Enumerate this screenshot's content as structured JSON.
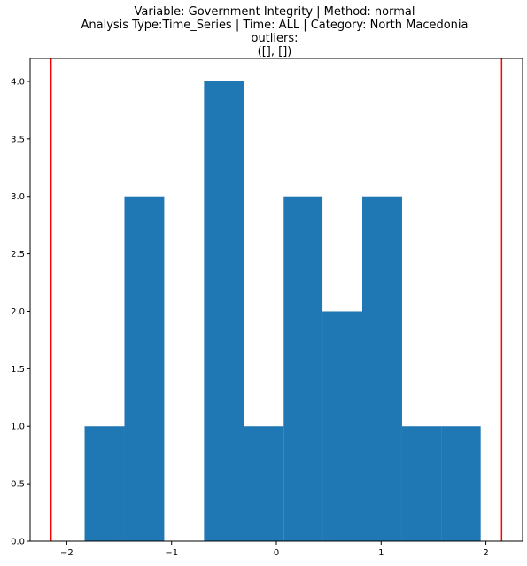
{
  "chart_data": {
    "type": "bar",
    "title_lines": [
      "Variable: Government Integrity | Method: normal",
      "Analysis Type:Time_Series | Time: ALL | Category: North Macedonia",
      "outliers:",
      "([], [])"
    ],
    "xlabel": "",
    "ylabel": "",
    "xlim": [
      -2.35,
      2.35
    ],
    "ylim": [
      0,
      4.2
    ],
    "x_ticks": [
      -2,
      -1,
      0,
      1,
      2
    ],
    "y_ticks": [
      0.0,
      0.5,
      1.0,
      1.5,
      2.0,
      2.5,
      3.0,
      3.5,
      4.0
    ],
    "bins": [
      {
        "start": -1.83,
        "end": -1.45,
        "count": 1
      },
      {
        "start": -1.45,
        "end": -1.07,
        "count": 3
      },
      {
        "start": -1.07,
        "end": -0.69,
        "count": 0
      },
      {
        "start": -0.69,
        "end": -0.31,
        "count": 4
      },
      {
        "start": -0.31,
        "end": 0.07,
        "count": 1
      },
      {
        "start": 0.07,
        "end": 0.44,
        "count": 3
      },
      {
        "start": 0.44,
        "end": 0.82,
        "count": 2
      },
      {
        "start": 0.82,
        "end": 1.2,
        "count": 3
      },
      {
        "start": 1.2,
        "end": 1.58,
        "count": 1
      },
      {
        "start": 1.58,
        "end": 1.95,
        "count": 1
      }
    ],
    "vlines": [
      -2.15,
      2.15
    ],
    "bar_color": "#1f77b4",
    "vline_color": "#ff0000",
    "grid": false
  }
}
